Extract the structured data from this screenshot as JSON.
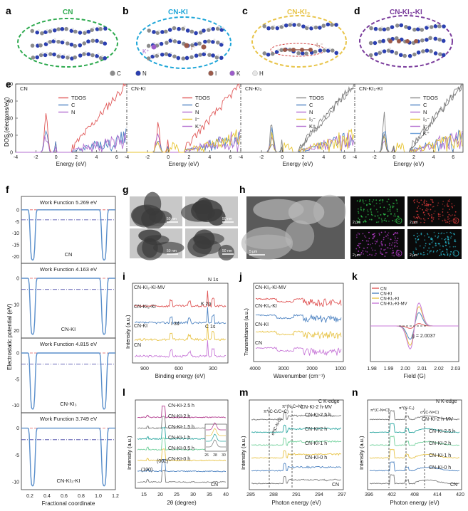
{
  "panel_letters": {
    "a": "a",
    "b": "b",
    "c": "c",
    "d": "d",
    "e": "e",
    "f": "f",
    "g": "g",
    "h": "h",
    "i": "i",
    "j": "j",
    "k": "k",
    "l": "l",
    "m": "m",
    "n": "n"
  },
  "structures": [
    {
      "title": "CN",
      "color": "#2eaa4f"
    },
    {
      "title": "CN-KI",
      "color": "#1fa6d8"
    },
    {
      "title": "CN-KI₃",
      "color": "#e8c449"
    },
    {
      "title": "CN-KI₃-KI",
      "color": "#7a3c9c"
    }
  ],
  "structure_labels": {
    "k_plus": "K⁺",
    "i_minus": "I⁻",
    "i3_minus": "I₃⁻"
  },
  "atom_legend": [
    {
      "label": "C",
      "color": "#8c8c8c"
    },
    {
      "label": "N",
      "color": "#2b3fb0"
    },
    {
      "label": "I",
      "color": "#9b5a4a"
    },
    {
      "label": "K",
      "color": "#9b5cc9"
    },
    {
      "label": "H",
      "color": "#e6e6e6"
    }
  ],
  "colors": {
    "tdos": "#e05858",
    "c": "#4f84c2",
    "n": "#b36fd0",
    "i_minus": "#e7c430",
    "iplus": "#b36fd0",
    "gray": "#7a7a7a",
    "kplus": "#6da0d8",
    "i3": "#b36fd0"
  },
  "dos": {
    "ylabel": "DOS (electrons/eV)",
    "yticks": [
      "0",
      "20",
      "40",
      "60",
      "80"
    ],
    "xlabel": "Energy (eV)",
    "xticks": [
      "-4",
      "-2",
      "0",
      "2",
      "4",
      "6"
    ],
    "panels": [
      {
        "title": "CN",
        "legend": [
          "TDOS",
          "C",
          "N"
        ]
      },
      {
        "title": "CN-KI",
        "legend": [
          "TDOS",
          "C",
          "N",
          "I⁻",
          "K⁺"
        ]
      },
      {
        "title": "CN-KI₃",
        "legend": [
          "TDOS",
          "C",
          "N",
          "I₃⁻",
          "K⁺"
        ]
      },
      {
        "title": "CN-KI₃-KI",
        "legend": [
          "TDOS",
          "C",
          "N",
          "I₃⁻",
          "I⁻",
          "K⁺"
        ]
      }
    ]
  },
  "work_function": {
    "ylabel": "Electrostatic potential (eV)",
    "xlabel": "Fractional coordinate",
    "xticks": [
      "0.2",
      "0.4",
      "0.6",
      "0.8",
      "1.0",
      "1.2"
    ],
    "panels": [
      {
        "title": "Work Function 5.269 eV",
        "name": "CN",
        "yticks": [
          "0",
          "-5",
          "-10",
          "-15",
          "-20"
        ]
      },
      {
        "title": "Work Function 4.163 eV",
        "name": "CN-KI",
        "yticks": [
          "0",
          "10",
          "20"
        ]
      },
      {
        "title": "Work Function 4.815 eV",
        "name": "CN-KI₃",
        "yticks": [
          "0",
          "-5",
          "-10"
        ]
      },
      {
        "title": "Work Function 3.749 eV",
        "name": "CN-KI₃-KI",
        "yticks": [
          "0",
          "-5",
          "-10"
        ]
      }
    ]
  },
  "tem_scalebars": [
    "50 nm",
    "50 nm",
    "50 nm",
    "50 nm"
  ],
  "sem": {
    "scalebar": "5 μm",
    "maps": [
      {
        "el": "C",
        "sb": "2 μm",
        "color": "#2fc04a"
      },
      {
        "el": "N",
        "sb": "2 μm",
        "color": "#d43838"
      },
      {
        "el": "K",
        "sb": "2 μm",
        "color": "#b43cc8"
      },
      {
        "el": "I",
        "sb": "2 μm",
        "color": "#28b4c8"
      }
    ]
  },
  "xps": {
    "ylabel": "Intensity (a.u.)",
    "xlabel": "Binding energy (eV)",
    "xticks": [
      "900",
      "600",
      "300"
    ],
    "series": [
      "CN-KI₃-KI-MV",
      "CN-KI₃-KI",
      "CN-KI",
      "CN"
    ],
    "peaks": [
      "N 1s",
      "K 2p",
      "I 3d",
      "C 1s"
    ]
  },
  "ftir": {
    "ylabel": "Transmittance (a.u.)",
    "xlabel": "Wavenumber (cm⁻¹)",
    "xticks": [
      "4000",
      "3000",
      "2000",
      "1000"
    ],
    "series": [
      "CN-KI₃-KI-MV",
      "CN-KI₃-KI",
      "CN-KI",
      "CN"
    ]
  },
  "epr": {
    "xlabel": "Field (G)",
    "xticks": [
      "1.98",
      "1.99",
      "2.00",
      "2.01",
      "2.02",
      "2.03"
    ],
    "legend": [
      "CN",
      "CN-KI",
      "CN-KI₃-KI",
      "CN-KI₃-KI-MV"
    ],
    "annotation": "g = 2.0037"
  },
  "xrd": {
    "ylabel": "Intensity (a.u.)",
    "xlabel": "2θ (degree)",
    "xticks": [
      "15",
      "20",
      "25",
      "30",
      "35",
      "40"
    ],
    "inset_ticks": [
      "26",
      "28",
      "30"
    ],
    "series": [
      "CN-KI-2.5 h",
      "CN-KI-2 h",
      "CN-KI-1.5 h",
      "CN-KI-1 h",
      "CN-KI-0.5 h",
      "CN-KI-0 h",
      "CN"
    ],
    "peaks": [
      "(100)",
      "(002)"
    ]
  },
  "ck": {
    "title": "C K-edge",
    "ylabel": "Intensity (a.u.)",
    "xlabel": "Photon energy (eV)",
    "xticks": [
      "285",
      "288",
      "291",
      "294",
      "297"
    ],
    "annotations": [
      "π*(C-C/C=C)",
      "π*(N-C=N)",
      "σ*(C-N-C)"
    ],
    "series": [
      "CN-KI-2 h-MV",
      "CN-KI-2.5 h",
      "CN-KI-2 h",
      "CN-KI-1 h",
      "CN-KI-0 h",
      "CN"
    ]
  },
  "nk": {
    "title": "N K-edge",
    "ylabel": "Intensity (a.u.)",
    "xlabel": "Photon energy (eV)",
    "xticks": [
      "396",
      "402",
      "408",
      "414",
      "420"
    ],
    "annotations": [
      "π*(C-N=C)",
      "π*(N-C₃)",
      "σ*(C-N=C)"
    ],
    "series": [
      "CN-KI-2 h-MV",
      "CN-KI-2.5 h",
      "CN-KI-2 h",
      "CN-KI-1 h",
      "CN-KI-0 h",
      "CN"
    ]
  },
  "series_colors": [
    "#c879d8",
    "#e8c449",
    "#4f84c2",
    "#e05858"
  ],
  "multi_colors": [
    "#b13a8c",
    "#7a7a7a",
    "#6fd09a",
    "#2aa6a0",
    "#e8c449",
    "#4f84c2",
    "#7a7a7a"
  ]
}
